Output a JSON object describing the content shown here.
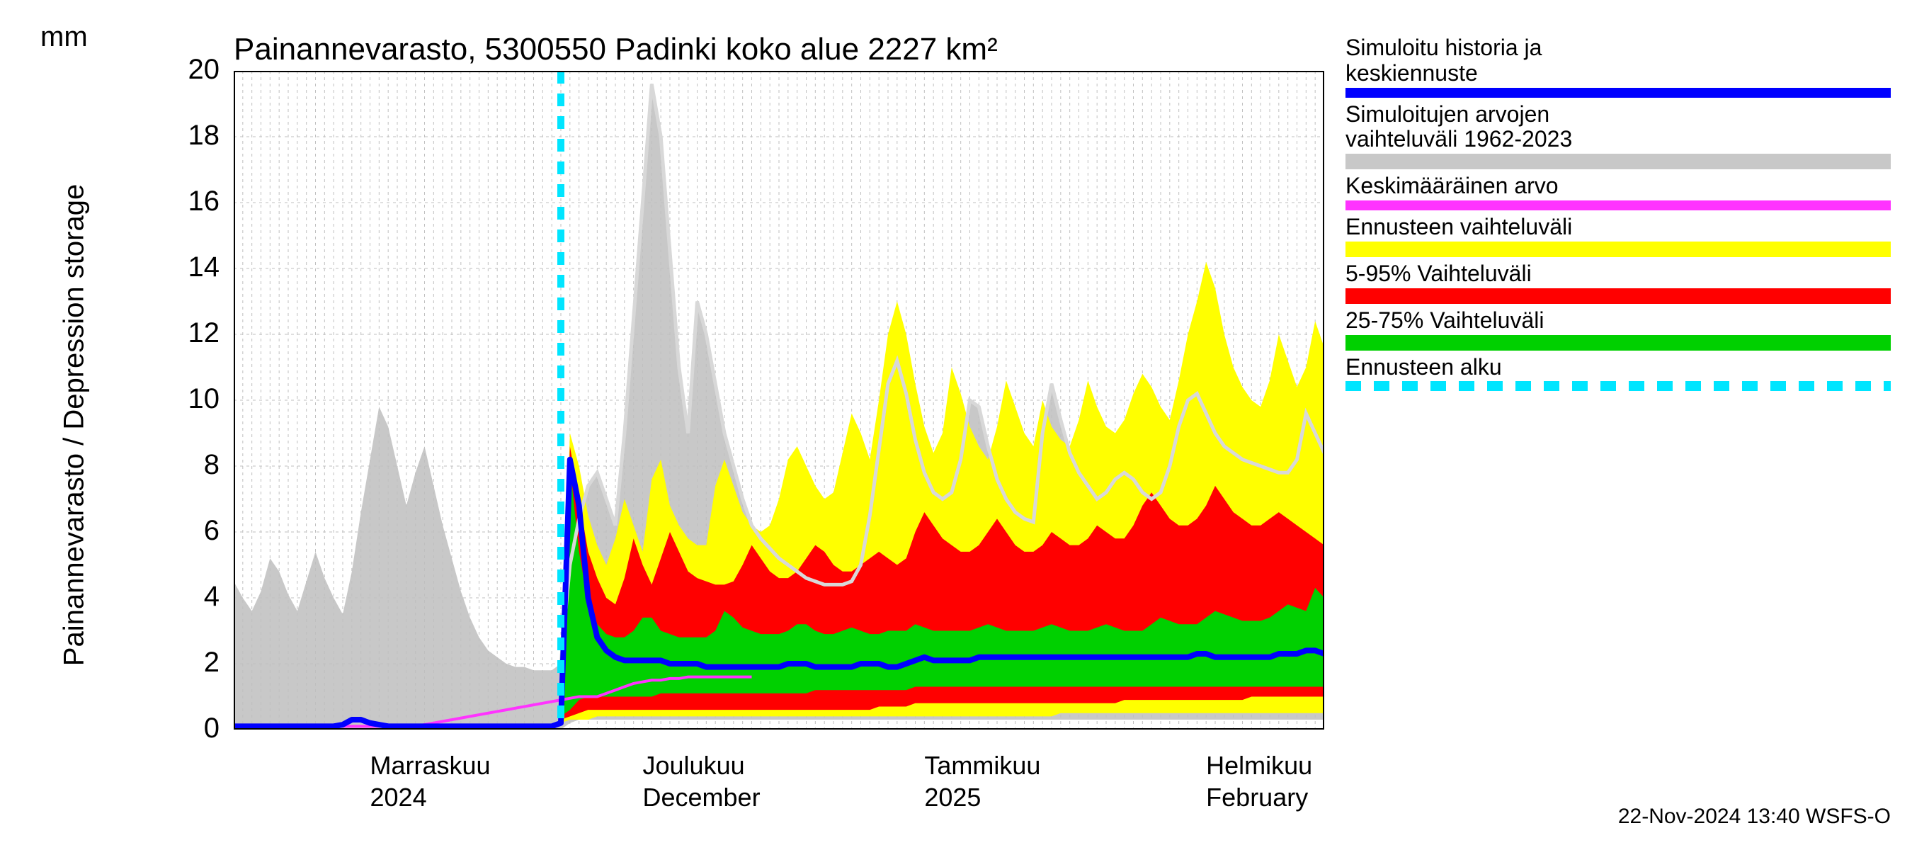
{
  "title": "Painannevarasto, 5300550 Padinki koko alue 2227 km²",
  "ylabel": "Painannevarasto / Depression storage",
  "yunit": "mm",
  "footer": "22-Nov-2024 13:40 WSFS-O",
  "chart": {
    "type": "area_forecast",
    "background_color": "#ffffff",
    "grid_color": "#bfbfbf",
    "axis_color": "#000000",
    "xlim": [
      0,
      120
    ],
    "ylim": [
      0,
      20
    ],
    "yticks": [
      0,
      2,
      4,
      6,
      8,
      10,
      12,
      14,
      16,
      18,
      20
    ],
    "xticks_major": [
      {
        "x": 15,
        "label_top": "Marraskuu",
        "label_bottom": "2024"
      },
      {
        "x": 45,
        "label_top": "Joulukuu",
        "label_bottom": "December"
      },
      {
        "x": 76,
        "label_top": "Tammikuu",
        "label_bottom": "2025"
      },
      {
        "x": 107,
        "label_top": "Helmikuu",
        "label_bottom": "February"
      }
    ],
    "minor_tick_step": 1,
    "forecast_start_x": 36,
    "series": {
      "hist_range": {
        "color": "#c8c8c8",
        "lo": [
          0,
          0,
          0,
          0,
          0,
          0,
          0,
          0,
          0,
          0,
          0,
          0,
          0,
          0,
          0,
          0,
          0,
          0,
          0,
          0,
          0,
          0,
          0,
          0,
          0,
          0,
          0,
          0,
          0,
          0,
          0,
          0,
          0,
          0,
          0,
          0,
          0,
          0.2,
          0.3,
          0.3,
          0.3,
          0.3,
          0.3,
          0.3,
          0.3,
          0.3,
          0.3,
          0.3,
          0.3,
          0.3,
          0.3,
          0.3,
          0.3,
          0.3,
          0.3,
          0.3,
          0.3,
          0.3,
          0.3,
          0.3,
          0.3,
          0.3,
          0.3,
          0.3,
          0.3,
          0.3,
          0.3,
          0.3,
          0.3,
          0.3,
          0.3,
          0.3,
          0.3,
          0.3,
          0.3,
          0.3,
          0.3,
          0.3,
          0.3,
          0.3,
          0.3,
          0.3,
          0.3,
          0.3,
          0.3,
          0.3,
          0.3,
          0.3,
          0.3,
          0.3,
          0.3,
          0.3,
          0.3,
          0.3,
          0.3,
          0.3,
          0.3,
          0.3,
          0.3,
          0.3,
          0.3,
          0.3,
          0.3,
          0.3,
          0.3,
          0.3,
          0.3,
          0.3,
          0.3,
          0.3,
          0.3,
          0.3,
          0.3,
          0.3,
          0.3,
          0.3,
          0.3,
          0.3,
          0.3,
          0.3,
          0.3
        ],
        "hi": [
          4.5,
          4.0,
          3.6,
          4.2,
          5.2,
          4.8,
          4.1,
          3.6,
          4.5,
          5.4,
          4.6,
          4.0,
          3.5,
          4.8,
          6.6,
          8.2,
          9.8,
          9.2,
          8.0,
          6.8,
          7.8,
          8.6,
          7.4,
          6.2,
          5.2,
          4.2,
          3.4,
          2.8,
          2.4,
          2.2,
          2.0,
          1.9,
          1.9,
          1.8,
          1.8,
          1.8,
          2.0,
          5.0,
          6.4,
          7.4,
          7.8,
          7.0,
          6.2,
          9.0,
          12.5,
          16.0,
          19.6,
          18.0,
          14.5,
          11.0,
          9.0,
          13.0,
          12.0,
          10.5,
          9.0,
          8.0,
          7.0,
          6.2,
          5.8,
          5.5,
          5.2,
          5.0,
          4.8,
          4.6,
          4.5,
          4.4,
          4.4,
          4.4,
          4.5,
          5.0,
          6.5,
          8.5,
          10.5,
          11.2,
          10.2,
          8.8,
          7.8,
          7.2,
          7.0,
          7.2,
          8.2,
          10.0,
          9.8,
          8.6,
          7.6,
          7.0,
          6.6,
          6.4,
          6.3,
          9.0,
          10.5,
          9.4,
          8.4,
          7.8,
          7.4,
          7.0,
          7.2,
          7.6,
          7.8,
          7.6,
          7.2,
          7.0,
          7.2,
          8.0,
          9.2,
          10.0,
          10.2,
          9.6,
          9.0,
          8.6,
          8.4,
          8.2,
          8.1,
          8.0,
          7.9,
          7.8,
          7.8,
          8.2,
          9.6,
          9.0,
          8.4
        ]
      },
      "forecast_full": {
        "color": "#ffff00",
        "lo": [
          0.2,
          0.3,
          0.3,
          0.3,
          0.4,
          0.4,
          0.4,
          0.4,
          0.4,
          0.4,
          0.4,
          0.4,
          0.4,
          0.4,
          0.4,
          0.4,
          0.4,
          0.4,
          0.4,
          0.4,
          0.4,
          0.4,
          0.4,
          0.4,
          0.4,
          0.4,
          0.4,
          0.4,
          0.4,
          0.4,
          0.4,
          0.4,
          0.4,
          0.4,
          0.4,
          0.4,
          0.4,
          0.4,
          0.4,
          0.4,
          0.4,
          0.4,
          0.4,
          0.4,
          0.4,
          0.4,
          0.4,
          0.4,
          0.4,
          0.4,
          0.4,
          0.4,
          0.4,
          0.4,
          0.4,
          0.5,
          0.5,
          0.5,
          0.5,
          0.5,
          0.5,
          0.5,
          0.5,
          0.5,
          0.5,
          0.5,
          0.5,
          0.5,
          0.5,
          0.5,
          0.5,
          0.5,
          0.5,
          0.5,
          0.5,
          0.5,
          0.5,
          0.5,
          0.5,
          0.5,
          0.5,
          0.5,
          0.5,
          0.5,
          0.5
        ],
        "hi": [
          1.0,
          9.0,
          8.0,
          6.5,
          5.6,
          5.0,
          5.8,
          7.0,
          6.2,
          5.4,
          7.6,
          8.2,
          6.8,
          6.2,
          5.8,
          5.6,
          5.6,
          7.4,
          8.2,
          7.4,
          6.6,
          6.2,
          6.0,
          6.2,
          7.0,
          8.2,
          8.6,
          8.0,
          7.4,
          7.0,
          7.2,
          8.4,
          9.6,
          9.0,
          8.2,
          10.0,
          12.0,
          13.0,
          12.0,
          10.5,
          9.2,
          8.4,
          9.0,
          11.0,
          10.2,
          9.2,
          8.6,
          8.2,
          9.2,
          10.6,
          9.8,
          9.0,
          8.6,
          10.0,
          9.2,
          8.8,
          8.6,
          9.4,
          10.6,
          9.8,
          9.2,
          9.0,
          9.4,
          10.2,
          10.8,
          10.4,
          9.8,
          9.4,
          10.6,
          12.0,
          13.0,
          14.2,
          13.4,
          12.0,
          11.0,
          10.4,
          10.0,
          9.8,
          10.6,
          12.0,
          11.2,
          10.4,
          11.0,
          12.4,
          11.6
        ]
      },
      "forecast_90": {
        "color": "#ff0000",
        "lo": [
          0.3,
          0.4,
          0.5,
          0.6,
          0.6,
          0.6,
          0.6,
          0.6,
          0.6,
          0.6,
          0.6,
          0.6,
          0.6,
          0.6,
          0.6,
          0.6,
          0.6,
          0.6,
          0.6,
          0.6,
          0.6,
          0.6,
          0.6,
          0.6,
          0.6,
          0.6,
          0.6,
          0.6,
          0.6,
          0.6,
          0.6,
          0.6,
          0.6,
          0.6,
          0.6,
          0.7,
          0.7,
          0.7,
          0.7,
          0.8,
          0.8,
          0.8,
          0.8,
          0.8,
          0.8,
          0.8,
          0.8,
          0.8,
          0.8,
          0.8,
          0.8,
          0.8,
          0.8,
          0.8,
          0.8,
          0.8,
          0.8,
          0.8,
          0.8,
          0.8,
          0.8,
          0.8,
          0.9,
          0.9,
          0.9,
          0.9,
          0.9,
          0.9,
          0.9,
          0.9,
          0.9,
          0.9,
          0.9,
          0.9,
          0.9,
          0.9,
          1.0,
          1.0,
          1.0,
          1.0,
          1.0,
          1.0,
          1.0,
          1.0,
          1.0
        ],
        "hi": [
          0.8,
          8.6,
          7.0,
          5.4,
          4.6,
          4.0,
          3.8,
          4.6,
          5.8,
          5.0,
          4.4,
          5.2,
          6.0,
          5.4,
          4.8,
          4.6,
          4.5,
          4.4,
          4.4,
          4.5,
          5.0,
          5.6,
          5.2,
          4.8,
          4.6,
          4.6,
          4.8,
          5.2,
          5.6,
          5.4,
          5.0,
          4.8,
          4.8,
          5.0,
          5.2,
          5.4,
          5.2,
          5.0,
          5.2,
          6.0,
          6.6,
          6.2,
          5.8,
          5.6,
          5.4,
          5.4,
          5.6,
          6.0,
          6.4,
          6.0,
          5.6,
          5.4,
          5.4,
          5.6,
          6.0,
          5.8,
          5.6,
          5.6,
          5.8,
          6.2,
          6.0,
          5.8,
          5.8,
          6.2,
          6.8,
          7.2,
          6.8,
          6.4,
          6.2,
          6.2,
          6.4,
          6.8,
          7.4,
          7.0,
          6.6,
          6.4,
          6.2,
          6.2,
          6.4,
          6.6,
          6.4,
          6.2,
          6.0,
          5.8,
          5.6
        ]
      },
      "forecast_50": {
        "color": "#00d000",
        "lo": [
          0.4,
          0.6,
          0.9,
          1.0,
          1.0,
          1.0,
          1.0,
          1.0,
          1.0,
          1.0,
          1.0,
          1.1,
          1.1,
          1.1,
          1.1,
          1.1,
          1.1,
          1.1,
          1.1,
          1.1,
          1.1,
          1.1,
          1.1,
          1.1,
          1.1,
          1.1,
          1.1,
          1.1,
          1.2,
          1.2,
          1.2,
          1.2,
          1.2,
          1.2,
          1.2,
          1.2,
          1.2,
          1.2,
          1.2,
          1.3,
          1.3,
          1.3,
          1.3,
          1.3,
          1.3,
          1.3,
          1.3,
          1.3,
          1.3,
          1.3,
          1.3,
          1.3,
          1.3,
          1.3,
          1.3,
          1.3,
          1.3,
          1.3,
          1.3,
          1.3,
          1.3,
          1.3,
          1.3,
          1.3,
          1.3,
          1.3,
          1.3,
          1.3,
          1.3,
          1.3,
          1.3,
          1.3,
          1.3,
          1.3,
          1.3,
          1.3,
          1.3,
          1.3,
          1.3,
          1.3,
          1.3,
          1.3,
          1.3,
          1.3,
          1.3
        ],
        "hi": [
          0.6,
          8.0,
          5.4,
          3.8,
          3.2,
          2.9,
          2.8,
          2.8,
          3.0,
          3.4,
          3.4,
          3.0,
          2.9,
          2.8,
          2.8,
          2.8,
          2.8,
          3.0,
          3.6,
          3.4,
          3.1,
          3.0,
          2.9,
          2.9,
          2.9,
          3.0,
          3.2,
          3.2,
          3.0,
          2.9,
          2.9,
          3.0,
          3.1,
          3.0,
          2.9,
          2.9,
          3.0,
          3.0,
          3.0,
          3.2,
          3.1,
          3.0,
          3.0,
          3.0,
          3.0,
          3.0,
          3.1,
          3.2,
          3.1,
          3.0,
          3.0,
          3.0,
          3.0,
          3.1,
          3.2,
          3.1,
          3.0,
          3.0,
          3.0,
          3.1,
          3.2,
          3.1,
          3.0,
          3.0,
          3.0,
          3.2,
          3.4,
          3.3,
          3.2,
          3.2,
          3.2,
          3.4,
          3.6,
          3.5,
          3.4,
          3.3,
          3.3,
          3.3,
          3.4,
          3.6,
          3.8,
          3.7,
          3.6,
          4.3,
          4.0
        ]
      },
      "median": {
        "color": "#0000ff",
        "width": 8,
        "y": [
          0.1,
          0.1,
          0.1,
          0.1,
          0.1,
          0.1,
          0.1,
          0.1,
          0.1,
          0.1,
          0.1,
          0.1,
          0.15,
          0.3,
          0.3,
          0.2,
          0.15,
          0.1,
          0.1,
          0.1,
          0.1,
          0.1,
          0.1,
          0.1,
          0.1,
          0.1,
          0.1,
          0.1,
          0.1,
          0.1,
          0.1,
          0.1,
          0.1,
          0.1,
          0.1,
          0.1,
          0.2,
          8.2,
          6.8,
          4.0,
          2.8,
          2.4,
          2.2,
          2.1,
          2.1,
          2.1,
          2.1,
          2.1,
          2.0,
          2.0,
          2.0,
          2.0,
          1.9,
          1.9,
          1.9,
          1.9,
          1.9,
          1.9,
          1.9,
          1.9,
          1.9,
          2.0,
          2.0,
          2.0,
          1.9,
          1.9,
          1.9,
          1.9,
          1.9,
          2.0,
          2.0,
          2.0,
          1.9,
          1.9,
          2.0,
          2.1,
          2.2,
          2.1,
          2.1,
          2.1,
          2.1,
          2.1,
          2.2,
          2.2,
          2.2,
          2.2,
          2.2,
          2.2,
          2.2,
          2.2,
          2.2,
          2.2,
          2.2,
          2.2,
          2.2,
          2.2,
          2.2,
          2.2,
          2.2,
          2.2,
          2.2,
          2.2,
          2.2,
          2.2,
          2.2,
          2.2,
          2.3,
          2.3,
          2.2,
          2.2,
          2.2,
          2.2,
          2.2,
          2.2,
          2.2,
          2.3,
          2.3,
          2.3,
          2.4,
          2.4,
          2.3
        ]
      },
      "mean": {
        "color": "#ff33ff",
        "width": 4,
        "y": [
          0.1,
          0.1,
          0.1,
          0.1,
          0.1,
          0.1,
          0.1,
          0.1,
          0.1,
          0.1,
          0.1,
          0.1,
          0.1,
          0.1,
          0.1,
          0.1,
          0.1,
          0.1,
          0.1,
          0.1,
          0.1,
          0.15,
          0.2,
          0.25,
          0.3,
          0.35,
          0.4,
          0.45,
          0.5,
          0.55,
          0.6,
          0.65,
          0.7,
          0.75,
          0.8,
          0.85,
          0.9,
          0.95,
          1.0,
          1.0,
          1.0,
          1.1,
          1.2,
          1.3,
          1.4,
          1.45,
          1.5,
          1.5,
          1.55,
          1.55,
          1.6,
          1.6,
          1.6,
          1.6,
          1.6,
          1.6,
          1.6,
          1.6
        ]
      }
    }
  },
  "legend": [
    {
      "text": "Simuloitu historia ja\nkeskiennuste",
      "type": "line",
      "color": "#0000ff"
    },
    {
      "text": "Simuloitujen arvojen\nvaihteluväli 1962-2023",
      "type": "block",
      "color": "#c8c8c8"
    },
    {
      "text": "Keskimääräinen arvo",
      "type": "line",
      "color": "#ff33ff"
    },
    {
      "text": "Ennusteen vaihteluväli",
      "type": "block",
      "color": "#ffff00"
    },
    {
      "text": "5-95% Vaihteluväli",
      "type": "block",
      "color": "#ff0000"
    },
    {
      "text": "25-75% Vaihteluväli",
      "type": "block",
      "color": "#00d000"
    },
    {
      "text": "Ennusteen alku",
      "type": "dashed",
      "color": "#00e5ff"
    }
  ]
}
